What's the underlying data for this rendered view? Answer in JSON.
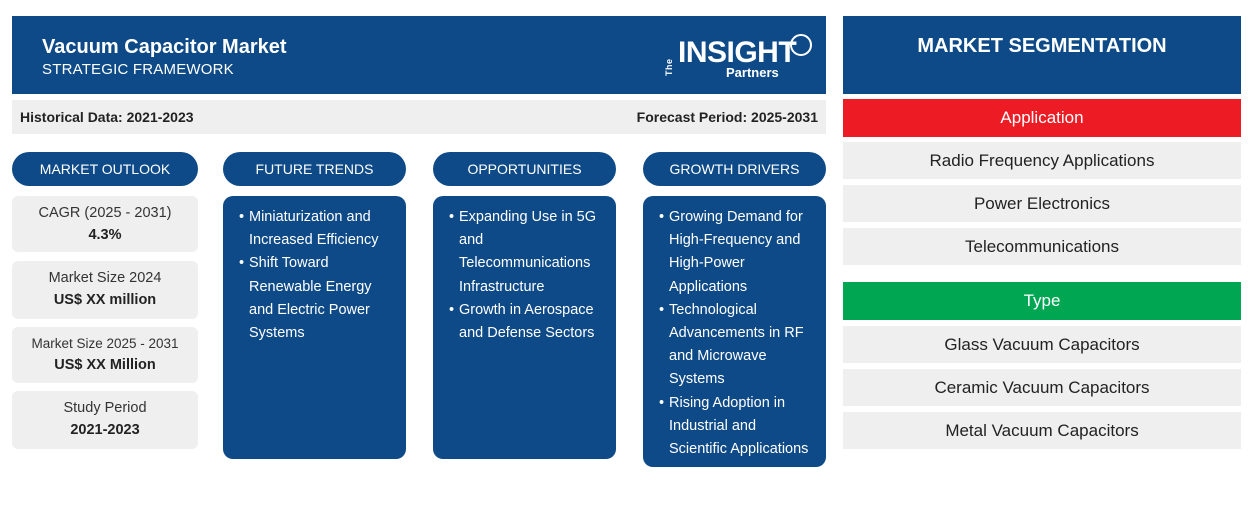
{
  "header": {
    "title": "Vacuum Capacitor Market",
    "subtitle": "STRATEGIC FRAMEWORK",
    "logo": {
      "the": "The",
      "insight": "INSIGHT",
      "partners": "Partners"
    }
  },
  "period_bar": {
    "historical": "Historical Data: 2021-2023",
    "forecast": "Forecast Period: 2025-2031"
  },
  "columns": {
    "outlook": "MARKET OUTLOOK",
    "trends": "FUTURE TRENDS",
    "opportunities": "OPPORTUNITIES",
    "drivers": "GROWTH DRIVERS"
  },
  "outlook": [
    {
      "label": "CAGR (2025 - 2031)",
      "value": "4.3%"
    },
    {
      "label": "Market Size 2024",
      "value": "US$ XX million"
    },
    {
      "label": "Market Size 2025 - 2031",
      "value": "US$ XX Million"
    },
    {
      "label": "Study Period",
      "value": "2021-2023"
    }
  ],
  "trends": [
    "Miniaturization and Increased Efficiency",
    "Shift Toward Renewable Energy and Electric Power Systems"
  ],
  "opportunities": [
    "Expanding Use in 5G and Telecommunications Infrastructure",
    "Growth in Aerospace and Defense Sectors"
  ],
  "drivers": [
    "Growing Demand for High-Frequency and High-Power Applications",
    "Technological Advancements in RF and Microwave Systems",
    "Rising Adoption in Industrial and Scientific Applications"
  ],
  "segmentation": {
    "title": "MARKET SEGMENTATION",
    "application": {
      "label": "Application",
      "color": "#ed1c24",
      "items": [
        "Radio Frequency Applications",
        "Power Electronics",
        "Telecommunications"
      ]
    },
    "type": {
      "label": "Type",
      "color": "#00a651",
      "items": [
        "Glass Vacuum Capacitors",
        "Ceramic Vacuum Capacitors",
        "Metal Vacuum Capacitors"
      ]
    }
  },
  "colors": {
    "navy": "#0e4a87",
    "light_gray": "#efefef"
  }
}
